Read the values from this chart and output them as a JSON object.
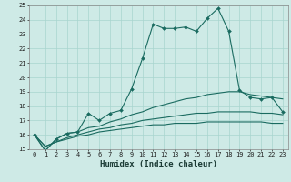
{
  "title": "",
  "xlabel": "Humidex (Indice chaleur)",
  "ylabel": "",
  "xlim": [
    -0.5,
    23.5
  ],
  "ylim": [
    15,
    25
  ],
  "yticks": [
    15,
    16,
    17,
    18,
    19,
    20,
    21,
    22,
    23,
    24,
    25
  ],
  "xticks": [
    0,
    1,
    2,
    3,
    4,
    5,
    6,
    7,
    8,
    9,
    10,
    11,
    12,
    13,
    14,
    15,
    16,
    17,
    18,
    19,
    20,
    21,
    22,
    23
  ],
  "background_color": "#ceeae6",
  "grid_color": "#a8d5cf",
  "line_color": "#1a6b60",
  "lines": [
    [
      16.0,
      14.9,
      15.7,
      16.1,
      16.2,
      17.5,
      17.0,
      17.5,
      17.7,
      19.2,
      21.3,
      23.7,
      23.4,
      23.4,
      23.5,
      23.2,
      24.1,
      24.8,
      23.2,
      19.1,
      18.6,
      18.5,
      18.6,
      17.6
    ],
    [
      16.0,
      14.9,
      15.7,
      16.1,
      16.2,
      16.5,
      16.6,
      16.9,
      17.1,
      17.4,
      17.6,
      17.9,
      18.1,
      18.3,
      18.5,
      18.6,
      18.8,
      18.9,
      19.0,
      19.0,
      18.8,
      18.7,
      18.6,
      18.5
    ],
    [
      16.0,
      15.2,
      15.5,
      15.8,
      16.0,
      16.2,
      16.4,
      16.5,
      16.7,
      16.8,
      17.0,
      17.1,
      17.2,
      17.3,
      17.4,
      17.5,
      17.5,
      17.6,
      17.6,
      17.6,
      17.6,
      17.5,
      17.5,
      17.4
    ],
    [
      16.0,
      15.2,
      15.5,
      15.7,
      15.9,
      16.0,
      16.2,
      16.3,
      16.4,
      16.5,
      16.6,
      16.7,
      16.7,
      16.8,
      16.8,
      16.8,
      16.9,
      16.9,
      16.9,
      16.9,
      16.9,
      16.9,
      16.8,
      16.8
    ]
  ],
  "marker": "D",
  "markersize": 2.0,
  "linewidth": 0.8,
  "xlabel_fontsize": 6.5,
  "tick_fontsize": 5.0
}
